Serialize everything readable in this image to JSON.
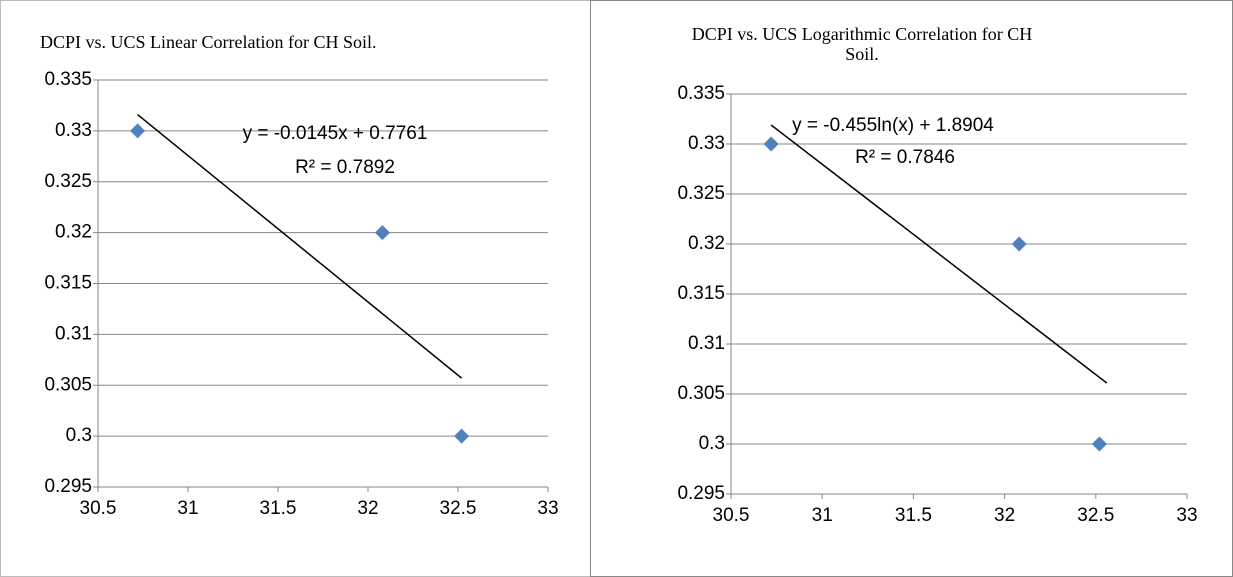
{
  "chart_data": [
    {
      "type": "scatter",
      "title": [
        "DCPI vs. UCS Linear Correlation for CH Soil."
      ],
      "x": [
        30.72,
        32.08,
        32.52
      ],
      "values": [
        0.33,
        0.32,
        0.3
      ],
      "color": "#4f81bd",
      "trendline": {
        "x": [
          30.72,
          32.52
        ],
        "values": [
          0.3316,
          0.3057
        ],
        "color": "#000000"
      },
      "annotations": [
        "y = -0.0145x + 0.7761",
        "R² = 0.7892"
      ],
      "xlim": [
        30.5,
        33
      ],
      "xticks": [
        30.5,
        31,
        31.5,
        32,
        32.5,
        33
      ],
      "ylim": [
        0.295,
        0.335
      ],
      "yticks": [
        0.295,
        0.3,
        0.305,
        0.31,
        0.315,
        0.32,
        0.325,
        0.33,
        0.335
      ],
      "grid": true
    },
    {
      "type": "scatter",
      "title": [
        "DCPI vs. UCS Logarithmic Correlation for CH",
        "Soil."
      ],
      "x": [
        30.72,
        32.08,
        32.52
      ],
      "values": [
        0.33,
        0.32,
        0.3
      ],
      "color": "#4f81bd",
      "trendline": {
        "x": [
          30.72,
          32.56
        ],
        "values": [
          0.3319,
          0.3061
        ],
        "color": "#000000"
      },
      "annotations": [
        "y = -0.455ln(x) + 1.8904",
        "R² = 0.7846"
      ],
      "xlim": [
        30.5,
        33
      ],
      "xticks": [
        30.5,
        31,
        31.5,
        32,
        32.5,
        33
      ],
      "ylim": [
        0.295,
        0.335
      ],
      "yticks": [
        0.295,
        0.3,
        0.305,
        0.31,
        0.315,
        0.32,
        0.325,
        0.33,
        0.335
      ],
      "grid": true
    }
  ]
}
